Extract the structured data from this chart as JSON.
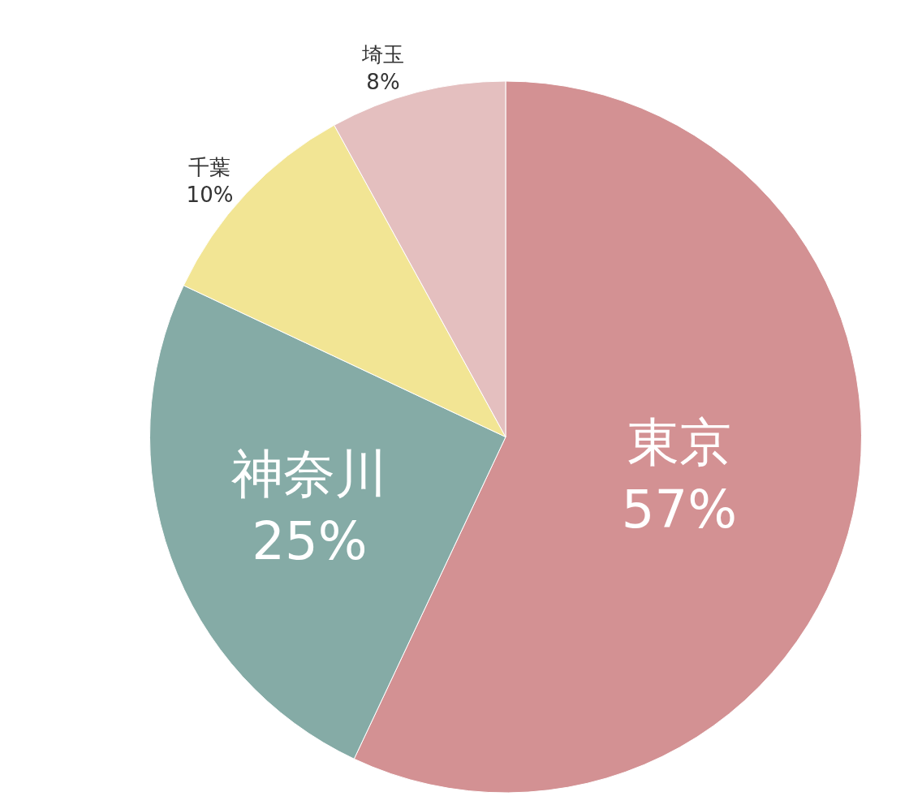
{
  "chart_data": {
    "type": "pie",
    "categories": [
      "東京",
      "神奈川",
      "千葉",
      "埼玉"
    ],
    "values": [
      57,
      25,
      10,
      8
    ],
    "value_labels": [
      "57%",
      "25%",
      "10%",
      "8%"
    ],
    "colors": [
      "#d39193",
      "#85aba6",
      "#f2e594",
      "#e4bfbf"
    ],
    "legend": false
  }
}
